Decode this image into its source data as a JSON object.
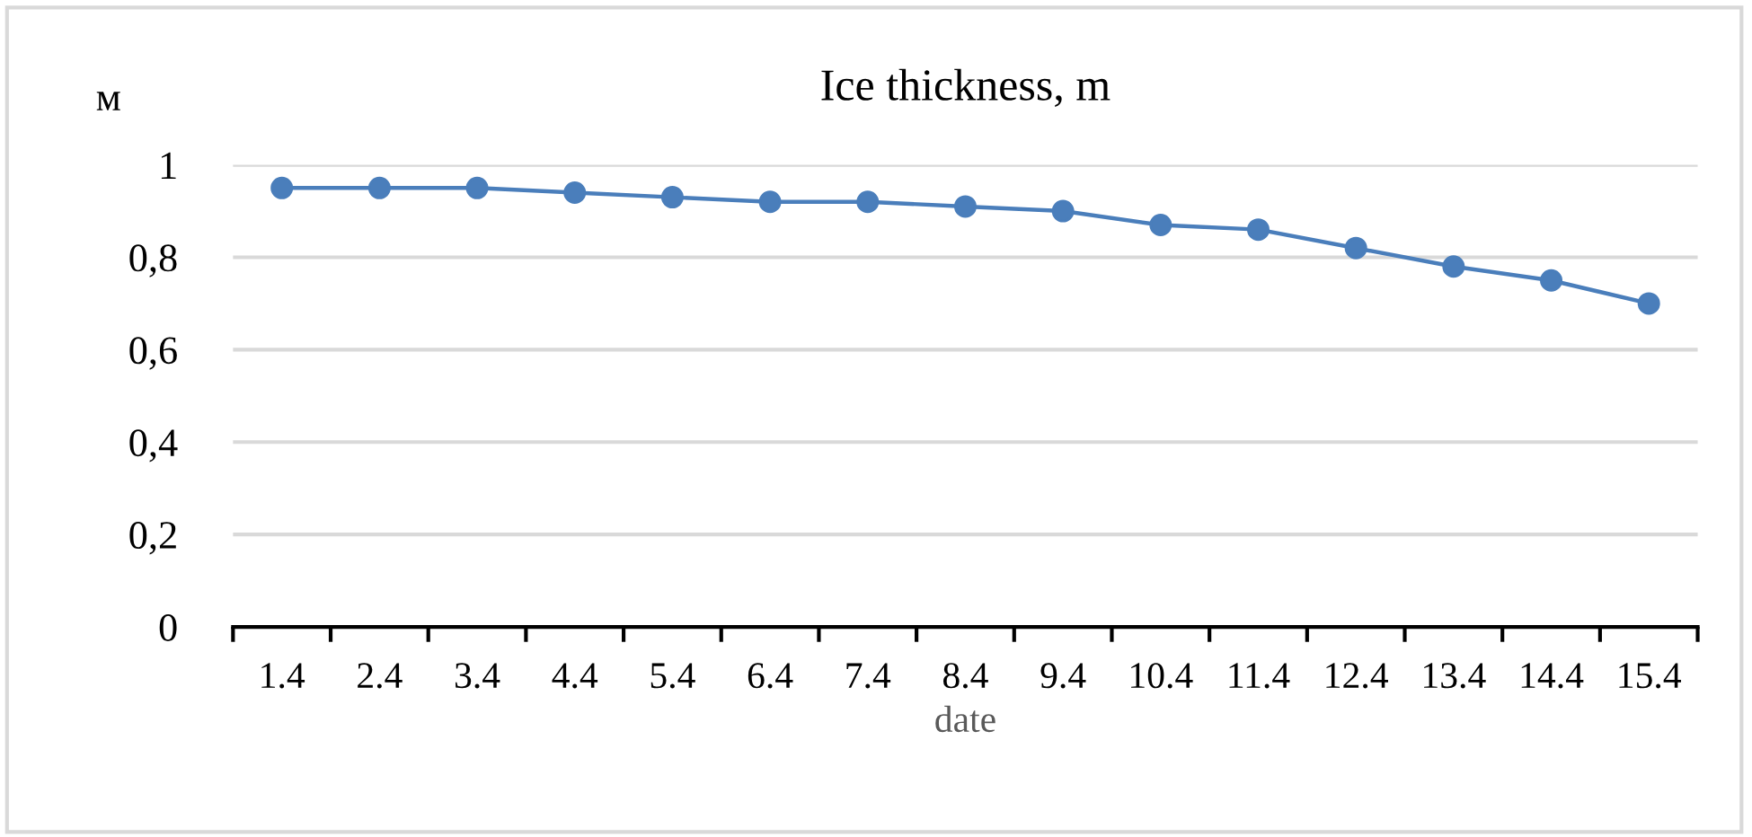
{
  "chart_data": {
    "type": "line",
    "title": "Ice thickness, m",
    "xlabel": "date",
    "ylabel": "м",
    "categories": [
      "1.4",
      "2.4",
      "3.4",
      "4.4",
      "5.4",
      "6.4",
      "7.4",
      "8.4",
      "9.4",
      "10.4",
      "11.4",
      "12.4",
      "13.4",
      "14.4",
      "15.4"
    ],
    "series": [
      {
        "color": "#4a7ebb",
        "values": [
          0.95,
          0.95,
          0.95,
          0.94,
          0.93,
          0.92,
          0.92,
          0.91,
          0.9,
          0.87,
          0.86,
          0.82,
          0.78,
          0.75,
          0.7
        ]
      }
    ],
    "ylim": [
      0,
      1
    ],
    "yticks": [
      0,
      {
        "value": 0.2,
        "label": "0,2"
      },
      {
        "value": 0.4,
        "label": "0,4"
      },
      {
        "value": 0.6,
        "label": "0,6"
      },
      {
        "value": 0.8,
        "label": "0,8"
      },
      1
    ],
    "grid": "y",
    "marker": "circle",
    "line_style": "solid",
    "legend": false
  }
}
